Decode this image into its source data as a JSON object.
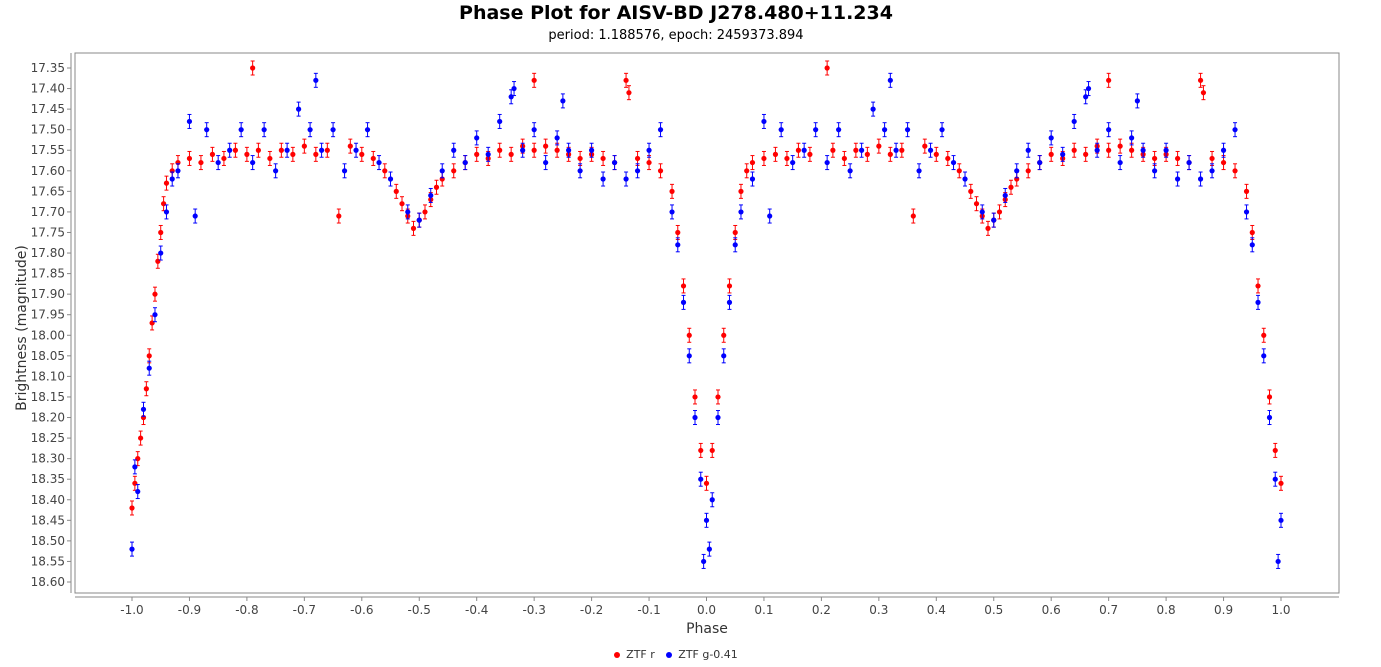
{
  "chart_data": {
    "type": "scatter",
    "title": "Phase Plot for AISV-BD J278.480+11.234",
    "subtitle": "period: 1.188576, epoch: 2459373.894",
    "xlabel": "Phase",
    "ylabel": "Brightness (magnitude)",
    "xlim": [
      -1.05,
      1.05
    ],
    "ylim": [
      17.33,
      18.63
    ],
    "y_inverted": true,
    "x_ticks": [
      "-1.0",
      "-0.9",
      "-0.8",
      "-0.7",
      "-0.6",
      "-0.5",
      "-0.4",
      "-0.3",
      "-0.2",
      "-0.1",
      "0.0",
      "0.1",
      "0.2",
      "0.3",
      "0.4",
      "0.5",
      "0.6",
      "0.7",
      "0.8",
      "0.9",
      "1.0"
    ],
    "y_ticks": [
      "17.35",
      "17.40",
      "17.45",
      "17.50",
      "17.55",
      "17.60",
      "17.65",
      "17.70",
      "17.75",
      "17.80",
      "17.85",
      "17.90",
      "17.95",
      "18.00",
      "18.05",
      "18.10",
      "18.15",
      "18.20",
      "18.25",
      "18.30",
      "18.35",
      "18.40",
      "18.45",
      "18.50",
      "18.55",
      "18.60"
    ],
    "grid": false,
    "legend_position": "bottom",
    "series": [
      {
        "name": "ZTF r",
        "color": "#ff0000",
        "points": [
          [
            -1.0,
            18.42
          ],
          [
            -0.995,
            18.36
          ],
          [
            -0.99,
            18.3
          ],
          [
            -0.985,
            18.25
          ],
          [
            -0.98,
            18.2
          ],
          [
            -0.975,
            18.13
          ],
          [
            -0.97,
            18.05
          ],
          [
            -0.965,
            17.97
          ],
          [
            -0.96,
            17.9
          ],
          [
            -0.955,
            17.82
          ],
          [
            -0.95,
            17.75
          ],
          [
            -0.945,
            17.68
          ],
          [
            -0.94,
            17.63
          ],
          [
            -0.93,
            17.6
          ],
          [
            -0.92,
            17.58
          ],
          [
            -0.9,
            17.57
          ],
          [
            -0.88,
            17.58
          ],
          [
            -0.86,
            17.56
          ],
          [
            -0.84,
            17.57
          ],
          [
            -0.82,
            17.55
          ],
          [
            -0.8,
            17.56
          ],
          [
            -0.79,
            17.35
          ],
          [
            -0.78,
            17.55
          ],
          [
            -0.76,
            17.57
          ],
          [
            -0.74,
            17.55
          ],
          [
            -0.72,
            17.56
          ],
          [
            -0.7,
            17.54
          ],
          [
            -0.68,
            17.56
          ],
          [
            -0.66,
            17.55
          ],
          [
            -0.64,
            17.71
          ],
          [
            -0.62,
            17.54
          ],
          [
            -0.6,
            17.56
          ],
          [
            -0.58,
            17.57
          ],
          [
            -0.56,
            17.6
          ],
          [
            -0.54,
            17.65
          ],
          [
            -0.53,
            17.68
          ],
          [
            -0.52,
            17.71
          ],
          [
            -0.51,
            17.74
          ],
          [
            -0.5,
            17.72
          ],
          [
            -0.49,
            17.7
          ],
          [
            -0.48,
            17.67
          ],
          [
            -0.47,
            17.64
          ],
          [
            -0.46,
            17.62
          ],
          [
            -0.44,
            17.6
          ],
          [
            -0.42,
            17.58
          ],
          [
            -0.4,
            17.56
          ],
          [
            -0.38,
            17.57
          ],
          [
            -0.36,
            17.55
          ],
          [
            -0.34,
            17.56
          ],
          [
            -0.32,
            17.54
          ],
          [
            -0.3,
            17.55
          ],
          [
            -0.3,
            17.38
          ],
          [
            -0.28,
            17.54
          ],
          [
            -0.26,
            17.55
          ],
          [
            -0.24,
            17.56
          ],
          [
            -0.22,
            17.57
          ],
          [
            -0.2,
            17.56
          ],
          [
            -0.18,
            17.57
          ],
          [
            -0.16,
            17.58
          ],
          [
            -0.14,
            17.38
          ],
          [
            -0.135,
            17.41
          ],
          [
            -0.12,
            17.57
          ],
          [
            -0.1,
            17.58
          ],
          [
            -0.08,
            17.6
          ],
          [
            -0.06,
            17.65
          ],
          [
            -0.05,
            17.75
          ],
          [
            -0.04,
            17.88
          ],
          [
            -0.03,
            18.0
          ],
          [
            -0.02,
            18.15
          ],
          [
            -0.01,
            18.28
          ],
          [
            0.0,
            18.36
          ],
          [
            0.01,
            18.28
          ],
          [
            0.02,
            18.15
          ],
          [
            0.03,
            18.0
          ],
          [
            0.04,
            17.88
          ],
          [
            0.05,
            17.75
          ],
          [
            0.06,
            17.65
          ],
          [
            0.07,
            17.6
          ],
          [
            0.08,
            17.58
          ],
          [
            0.1,
            17.57
          ],
          [
            0.12,
            17.56
          ],
          [
            0.14,
            17.57
          ],
          [
            0.16,
            17.55
          ],
          [
            0.18,
            17.56
          ],
          [
            0.21,
            17.35
          ],
          [
            0.22,
            17.55
          ],
          [
            0.24,
            17.57
          ],
          [
            0.26,
            17.55
          ],
          [
            0.28,
            17.56
          ],
          [
            0.3,
            17.54
          ],
          [
            0.32,
            17.56
          ],
          [
            0.34,
            17.55
          ],
          [
            0.36,
            17.71
          ],
          [
            0.38,
            17.54
          ],
          [
            0.4,
            17.56
          ],
          [
            0.42,
            17.57
          ],
          [
            0.44,
            17.6
          ],
          [
            0.46,
            17.65
          ],
          [
            0.47,
            17.68
          ],
          [
            0.48,
            17.71
          ],
          [
            0.49,
            17.74
          ],
          [
            0.5,
            17.72
          ],
          [
            0.51,
            17.7
          ],
          [
            0.52,
            17.67
          ],
          [
            0.53,
            17.64
          ],
          [
            0.54,
            17.62
          ],
          [
            0.56,
            17.6
          ],
          [
            0.58,
            17.58
          ],
          [
            0.6,
            17.56
          ],
          [
            0.62,
            17.57
          ],
          [
            0.64,
            17.55
          ],
          [
            0.66,
            17.56
          ],
          [
            0.68,
            17.54
          ],
          [
            0.7,
            17.55
          ],
          [
            0.7,
            17.38
          ],
          [
            0.72,
            17.54
          ],
          [
            0.74,
            17.55
          ],
          [
            0.76,
            17.56
          ],
          [
            0.78,
            17.57
          ],
          [
            0.8,
            17.56
          ],
          [
            0.82,
            17.57
          ],
          [
            0.84,
            17.58
          ],
          [
            0.86,
            17.38
          ],
          [
            0.865,
            17.41
          ],
          [
            0.88,
            17.57
          ],
          [
            0.9,
            17.58
          ],
          [
            0.92,
            17.6
          ],
          [
            0.94,
            17.65
          ],
          [
            0.95,
            17.75
          ],
          [
            0.96,
            17.88
          ],
          [
            0.97,
            18.0
          ],
          [
            0.98,
            18.15
          ],
          [
            0.99,
            18.28
          ],
          [
            1.0,
            18.36
          ]
        ]
      },
      {
        "name": "ZTF g-0.41",
        "color": "#0000ff",
        "points": [
          [
            -1.0,
            18.52
          ],
          [
            -0.995,
            18.32
          ],
          [
            -0.99,
            18.38
          ],
          [
            -0.98,
            18.18
          ],
          [
            -0.97,
            18.08
          ],
          [
            -0.96,
            17.95
          ],
          [
            -0.95,
            17.8
          ],
          [
            -0.94,
            17.7
          ],
          [
            -0.93,
            17.62
          ],
          [
            -0.92,
            17.6
          ],
          [
            -0.9,
            17.48
          ],
          [
            -0.89,
            17.71
          ],
          [
            -0.87,
            17.5
          ],
          [
            -0.85,
            17.58
          ],
          [
            -0.83,
            17.55
          ],
          [
            -0.81,
            17.5
          ],
          [
            -0.79,
            17.58
          ],
          [
            -0.77,
            17.5
          ],
          [
            -0.75,
            17.6
          ],
          [
            -0.73,
            17.55
          ],
          [
            -0.71,
            17.45
          ],
          [
            -0.69,
            17.5
          ],
          [
            -0.68,
            17.38
          ],
          [
            -0.67,
            17.55
          ],
          [
            -0.65,
            17.5
          ],
          [
            -0.63,
            17.6
          ],
          [
            -0.61,
            17.55
          ],
          [
            -0.59,
            17.5
          ],
          [
            -0.57,
            17.58
          ],
          [
            -0.55,
            17.62
          ],
          [
            -0.52,
            17.7
          ],
          [
            -0.5,
            17.72
          ],
          [
            -0.48,
            17.66
          ],
          [
            -0.46,
            17.6
          ],
          [
            -0.44,
            17.55
          ],
          [
            -0.42,
            17.58
          ],
          [
            -0.4,
            17.52
          ],
          [
            -0.38,
            17.56
          ],
          [
            -0.36,
            17.48
          ],
          [
            -0.34,
            17.42
          ],
          [
            -0.335,
            17.4
          ],
          [
            -0.32,
            17.55
          ],
          [
            -0.3,
            17.5
          ],
          [
            -0.28,
            17.58
          ],
          [
            -0.26,
            17.52
          ],
          [
            -0.25,
            17.43
          ],
          [
            -0.24,
            17.55
          ],
          [
            -0.22,
            17.6
          ],
          [
            -0.2,
            17.55
          ],
          [
            -0.18,
            17.62
          ],
          [
            -0.16,
            17.58
          ],
          [
            -0.14,
            17.62
          ],
          [
            -0.12,
            17.6
          ],
          [
            -0.1,
            17.55
          ],
          [
            -0.08,
            17.5
          ],
          [
            -0.06,
            17.7
          ],
          [
            -0.05,
            17.78
          ],
          [
            -0.04,
            17.92
          ],
          [
            -0.03,
            18.05
          ],
          [
            -0.02,
            18.2
          ],
          [
            -0.01,
            18.35
          ],
          [
            -0.005,
            18.55
          ],
          [
            0.0,
            18.45
          ],
          [
            0.005,
            18.52
          ],
          [
            0.01,
            18.4
          ],
          [
            0.02,
            18.2
          ],
          [
            0.03,
            18.05
          ],
          [
            0.04,
            17.92
          ],
          [
            0.05,
            17.78
          ],
          [
            0.06,
            17.7
          ],
          [
            0.08,
            17.62
          ],
          [
            0.1,
            17.48
          ],
          [
            0.11,
            17.71
          ],
          [
            0.13,
            17.5
          ],
          [
            0.15,
            17.58
          ],
          [
            0.17,
            17.55
          ],
          [
            0.19,
            17.5
          ],
          [
            0.21,
            17.58
          ],
          [
            0.23,
            17.5
          ],
          [
            0.25,
            17.6
          ],
          [
            0.27,
            17.55
          ],
          [
            0.29,
            17.45
          ],
          [
            0.31,
            17.5
          ],
          [
            0.32,
            17.38
          ],
          [
            0.33,
            17.55
          ],
          [
            0.35,
            17.5
          ],
          [
            0.37,
            17.6
          ],
          [
            0.39,
            17.55
          ],
          [
            0.41,
            17.5
          ],
          [
            0.43,
            17.58
          ],
          [
            0.45,
            17.62
          ],
          [
            0.48,
            17.7
          ],
          [
            0.5,
            17.72
          ],
          [
            0.52,
            17.66
          ],
          [
            0.54,
            17.6
          ],
          [
            0.56,
            17.55
          ],
          [
            0.58,
            17.58
          ],
          [
            0.6,
            17.52
          ],
          [
            0.62,
            17.56
          ],
          [
            0.64,
            17.48
          ],
          [
            0.66,
            17.42
          ],
          [
            0.665,
            17.4
          ],
          [
            0.68,
            17.55
          ],
          [
            0.7,
            17.5
          ],
          [
            0.72,
            17.58
          ],
          [
            0.74,
            17.52
          ],
          [
            0.75,
            17.43
          ],
          [
            0.76,
            17.55
          ],
          [
            0.78,
            17.6
          ],
          [
            0.8,
            17.55
          ],
          [
            0.82,
            17.62
          ],
          [
            0.84,
            17.58
          ],
          [
            0.86,
            17.62
          ],
          [
            0.88,
            17.6
          ],
          [
            0.9,
            17.55
          ],
          [
            0.92,
            17.5
          ],
          [
            0.94,
            17.7
          ],
          [
            0.95,
            17.78
          ],
          [
            0.96,
            17.92
          ],
          [
            0.97,
            18.05
          ],
          [
            0.98,
            18.2
          ],
          [
            0.99,
            18.35
          ],
          [
            0.995,
            18.55
          ],
          [
            1.0,
            18.45
          ]
        ]
      }
    ]
  }
}
